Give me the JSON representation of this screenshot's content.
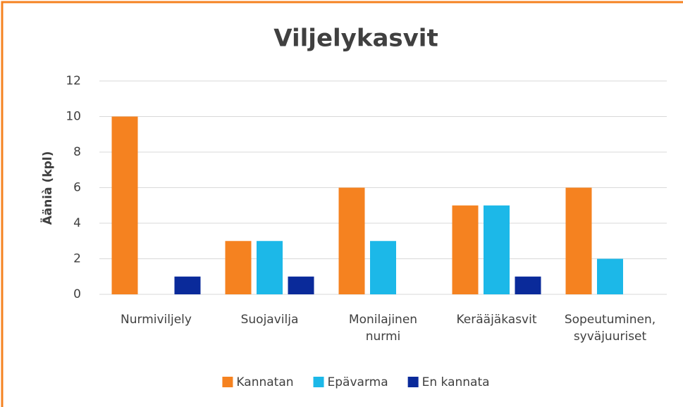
{
  "chart_data": {
    "type": "bar",
    "title": "Viljelykasvit",
    "y_label": "Äänià (kpl)",
    "categories": [
      "Nurmiviljely",
      "Suojavilja",
      "Monilajinen nurmi",
      "Kerääjäkasvit",
      "Sopeutuminen, syväjuuriset"
    ],
    "series": [
      {
        "name": "Kannatan",
        "color": "#f58220",
        "values": [
          10,
          3,
          6,
          5,
          6
        ]
      },
      {
        "name": "Epävarma",
        "color": "#1cb8e8",
        "values": [
          0,
          3,
          3,
          5,
          2
        ]
      },
      {
        "name": "En kannata",
        "color": "#0a2a9a",
        "values": [
          1,
          1,
          0,
          1,
          0
        ]
      }
    ],
    "ylim": [
      0,
      12
    ],
    "yticks": [
      0,
      2,
      4,
      6,
      8,
      10,
      12
    ],
    "grid": true,
    "legend": "bottom"
  }
}
